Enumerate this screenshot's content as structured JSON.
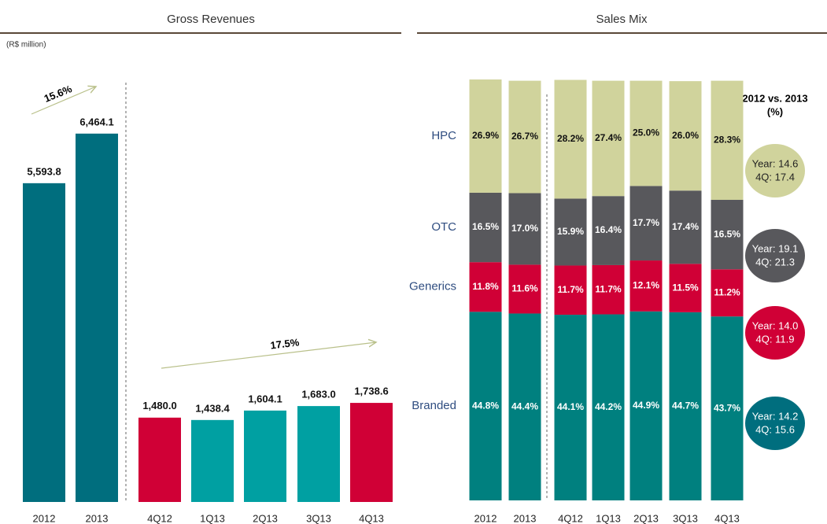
{
  "chart_data": [
    {
      "type": "bar",
      "title": "Gross Revenues",
      "unit": "(R$ million)",
      "categories": [
        "2012",
        "2013",
        "4Q12",
        "1Q13",
        "2Q13",
        "3Q13",
        "4Q13"
      ],
      "values": [
        5593.8,
        6464.1,
        1480.0,
        1438.4,
        1604.1,
        1683.0,
        1738.6
      ],
      "value_labels": [
        "5,593.8",
        "6,464.1",
        "1,480.0",
        "1,438.4",
        "1,604.1",
        "1,683.0",
        "1,738.6"
      ],
      "colors": [
        "#006e7e",
        "#006e7e",
        "#d00036",
        "#00a0a2",
        "#00a0a2",
        "#00a0a2",
        "#d00036"
      ],
      "ylim": [
        0,
        7000
      ],
      "annotations": [
        "15.6%",
        "17.5%"
      ]
    },
    {
      "type": "stacked_bar",
      "title": "Sales Mix",
      "categories": [
        "2012",
        "2013",
        "4Q12",
        "1Q13",
        "2Q13",
        "3Q13",
        "4Q13"
      ],
      "ylim": [
        0,
        100
      ],
      "series": [
        {
          "name": "Branded",
          "color": "#00807f",
          "label_color": "#ffffff",
          "values": [
            44.8,
            44.4,
            44.1,
            44.2,
            44.9,
            44.7,
            43.7
          ],
          "value_labels": [
            "44.8%",
            "44.4%",
            "44.1%",
            "44.2%",
            "44.9%",
            "44.7%",
            "43.7%"
          ]
        },
        {
          "name": "Generics",
          "color": "#d00036",
          "label_color": "#ffffff",
          "values": [
            11.8,
            11.6,
            11.7,
            11.7,
            12.1,
            11.5,
            11.2
          ],
          "value_labels": [
            "11.8%",
            "11.6%",
            "11.7%",
            "11.7%",
            "12.1%",
            "11.5%",
            "11.2%"
          ]
        },
        {
          "name": "OTC",
          "color": "#58585c",
          "label_color": "#ffffff",
          "values": [
            16.5,
            17.0,
            15.9,
            16.4,
            17.7,
            17.4,
            16.5
          ],
          "value_labels": [
            "16.5%",
            "17.0%",
            "15.9%",
            "16.4%",
            "17.7%",
            "17.4%",
            "16.5%"
          ]
        },
        {
          "name": "HPC",
          "color": "#d0d39c",
          "label_color": "#111111",
          "values": [
            26.9,
            26.7,
            28.2,
            27.4,
            25.0,
            26.0,
            28.3
          ],
          "value_labels": [
            "26.9%",
            "26.7%",
            "28.2%",
            "27.4%",
            "25.0%",
            "26.0%",
            "28.3%"
          ]
        }
      ]
    }
  ],
  "growth": {
    "title": "2012 vs. 2013",
    "unit": "(%)",
    "items": [
      {
        "year": "Year: 14.6",
        "quarter": "4Q: 17.4",
        "color": "#d0d39c",
        "text_color": "#222222"
      },
      {
        "year": "Year: 19.1",
        "quarter": "4Q: 21.3",
        "color": "#58585c",
        "text_color": "#ffffff"
      },
      {
        "year": "Year: 14.0",
        "quarter": "4Q: 11.9",
        "color": "#d00036",
        "text_color": "#ffffff"
      },
      {
        "year": "Year: 14.2",
        "quarter": "4Q: 15.6",
        "color": "#006e7e",
        "text_color": "#ffffff"
      }
    ]
  }
}
